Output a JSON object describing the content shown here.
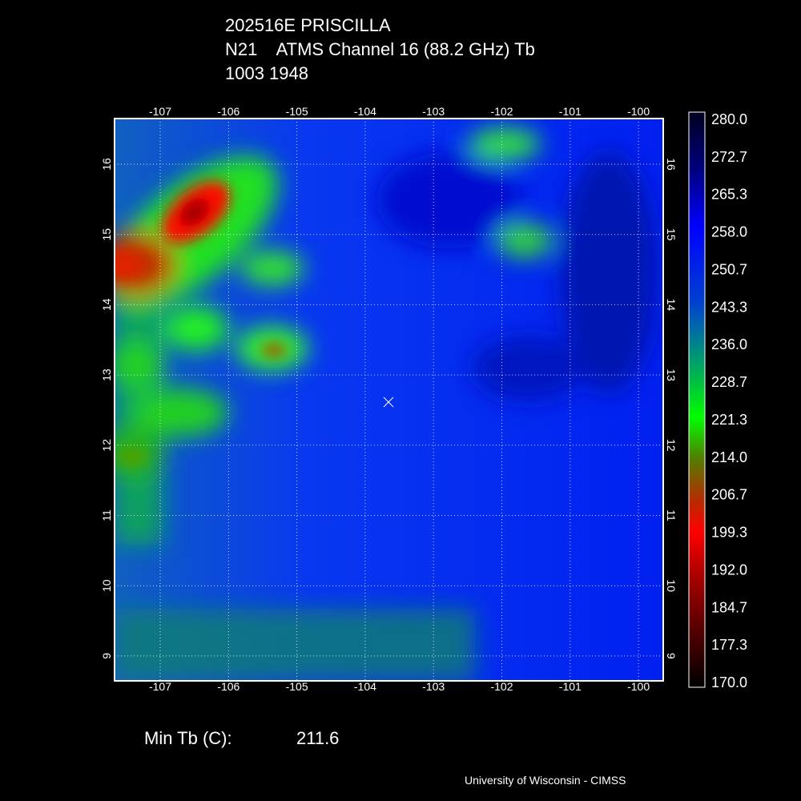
{
  "header": {
    "lines": [
      "202516E PRISCILLA",
      "N21    ATMS Channel 16 (88.2 GHz) Tb",
      "1003 1948"
    ]
  },
  "map": {
    "lon_labels": [
      "-107",
      "-106",
      "-105",
      "-104",
      "-103",
      "-102",
      "-101",
      "-100"
    ],
    "lat_labels": [
      "16",
      "15",
      "14",
      "13",
      "12",
      "11",
      "10",
      "9"
    ]
  },
  "colorbar": {
    "labels": [
      "280.0",
      "272.7",
      "265.3",
      "258.0",
      "250.7",
      "243.3",
      "236.0",
      "228.7",
      "221.3",
      "214.0",
      "206.7",
      "199.3",
      "192.0",
      "184.7",
      "177.3",
      "170.0"
    ]
  },
  "footer": {
    "min_label": "Min Tb (C):",
    "min_value": "211.6",
    "credit": "University of Wisconsin - CIMSS"
  }
}
